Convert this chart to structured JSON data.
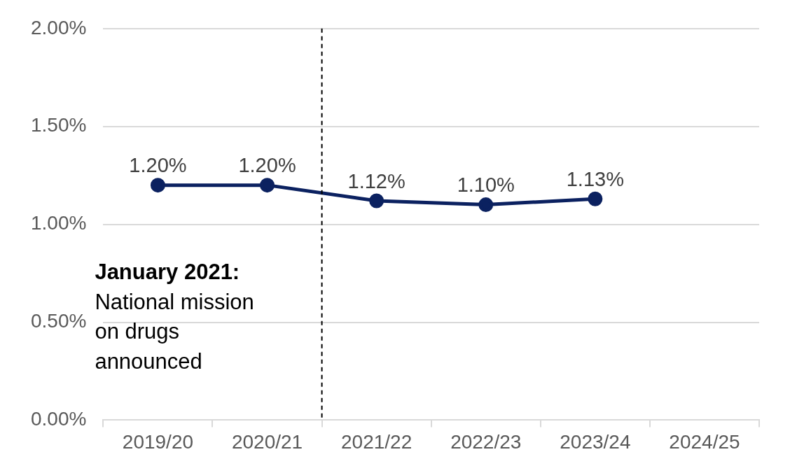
{
  "chart_data": {
    "type": "line",
    "categories": [
      "2019/20",
      "2020/21",
      "2021/22",
      "2022/23",
      "2023/24",
      "2024/25"
    ],
    "series": [
      {
        "color": "#0b2160",
        "values": [
          1.2,
          1.2,
          1.12,
          1.1,
          1.13,
          null
        ],
        "value_labels": [
          "1.20%",
          "1.20%",
          "1.12%",
          "1.10%",
          "1.13%",
          null
        ]
      }
    ],
    "ylim": [
      0,
      2
    ],
    "yticks": [
      {
        "value": 0,
        "label": "0.00%"
      },
      {
        "value": 0.5,
        "label": "0.50%"
      },
      {
        "value": 1,
        "label": "1.00%"
      },
      {
        "value": 1.5,
        "label": "1.50%"
      },
      {
        "value": 2,
        "label": "2.00%"
      }
    ],
    "grid": "y",
    "legend": false,
    "marker": "circle",
    "line_style": "solid",
    "ref_lines": [
      {
        "axis": "x",
        "value": "2020/21",
        "color": "#000000",
        "line_style": "dashed"
      }
    ],
    "annotations": [
      "January 2021:",
      "National mission on drugs announced"
    ]
  }
}
